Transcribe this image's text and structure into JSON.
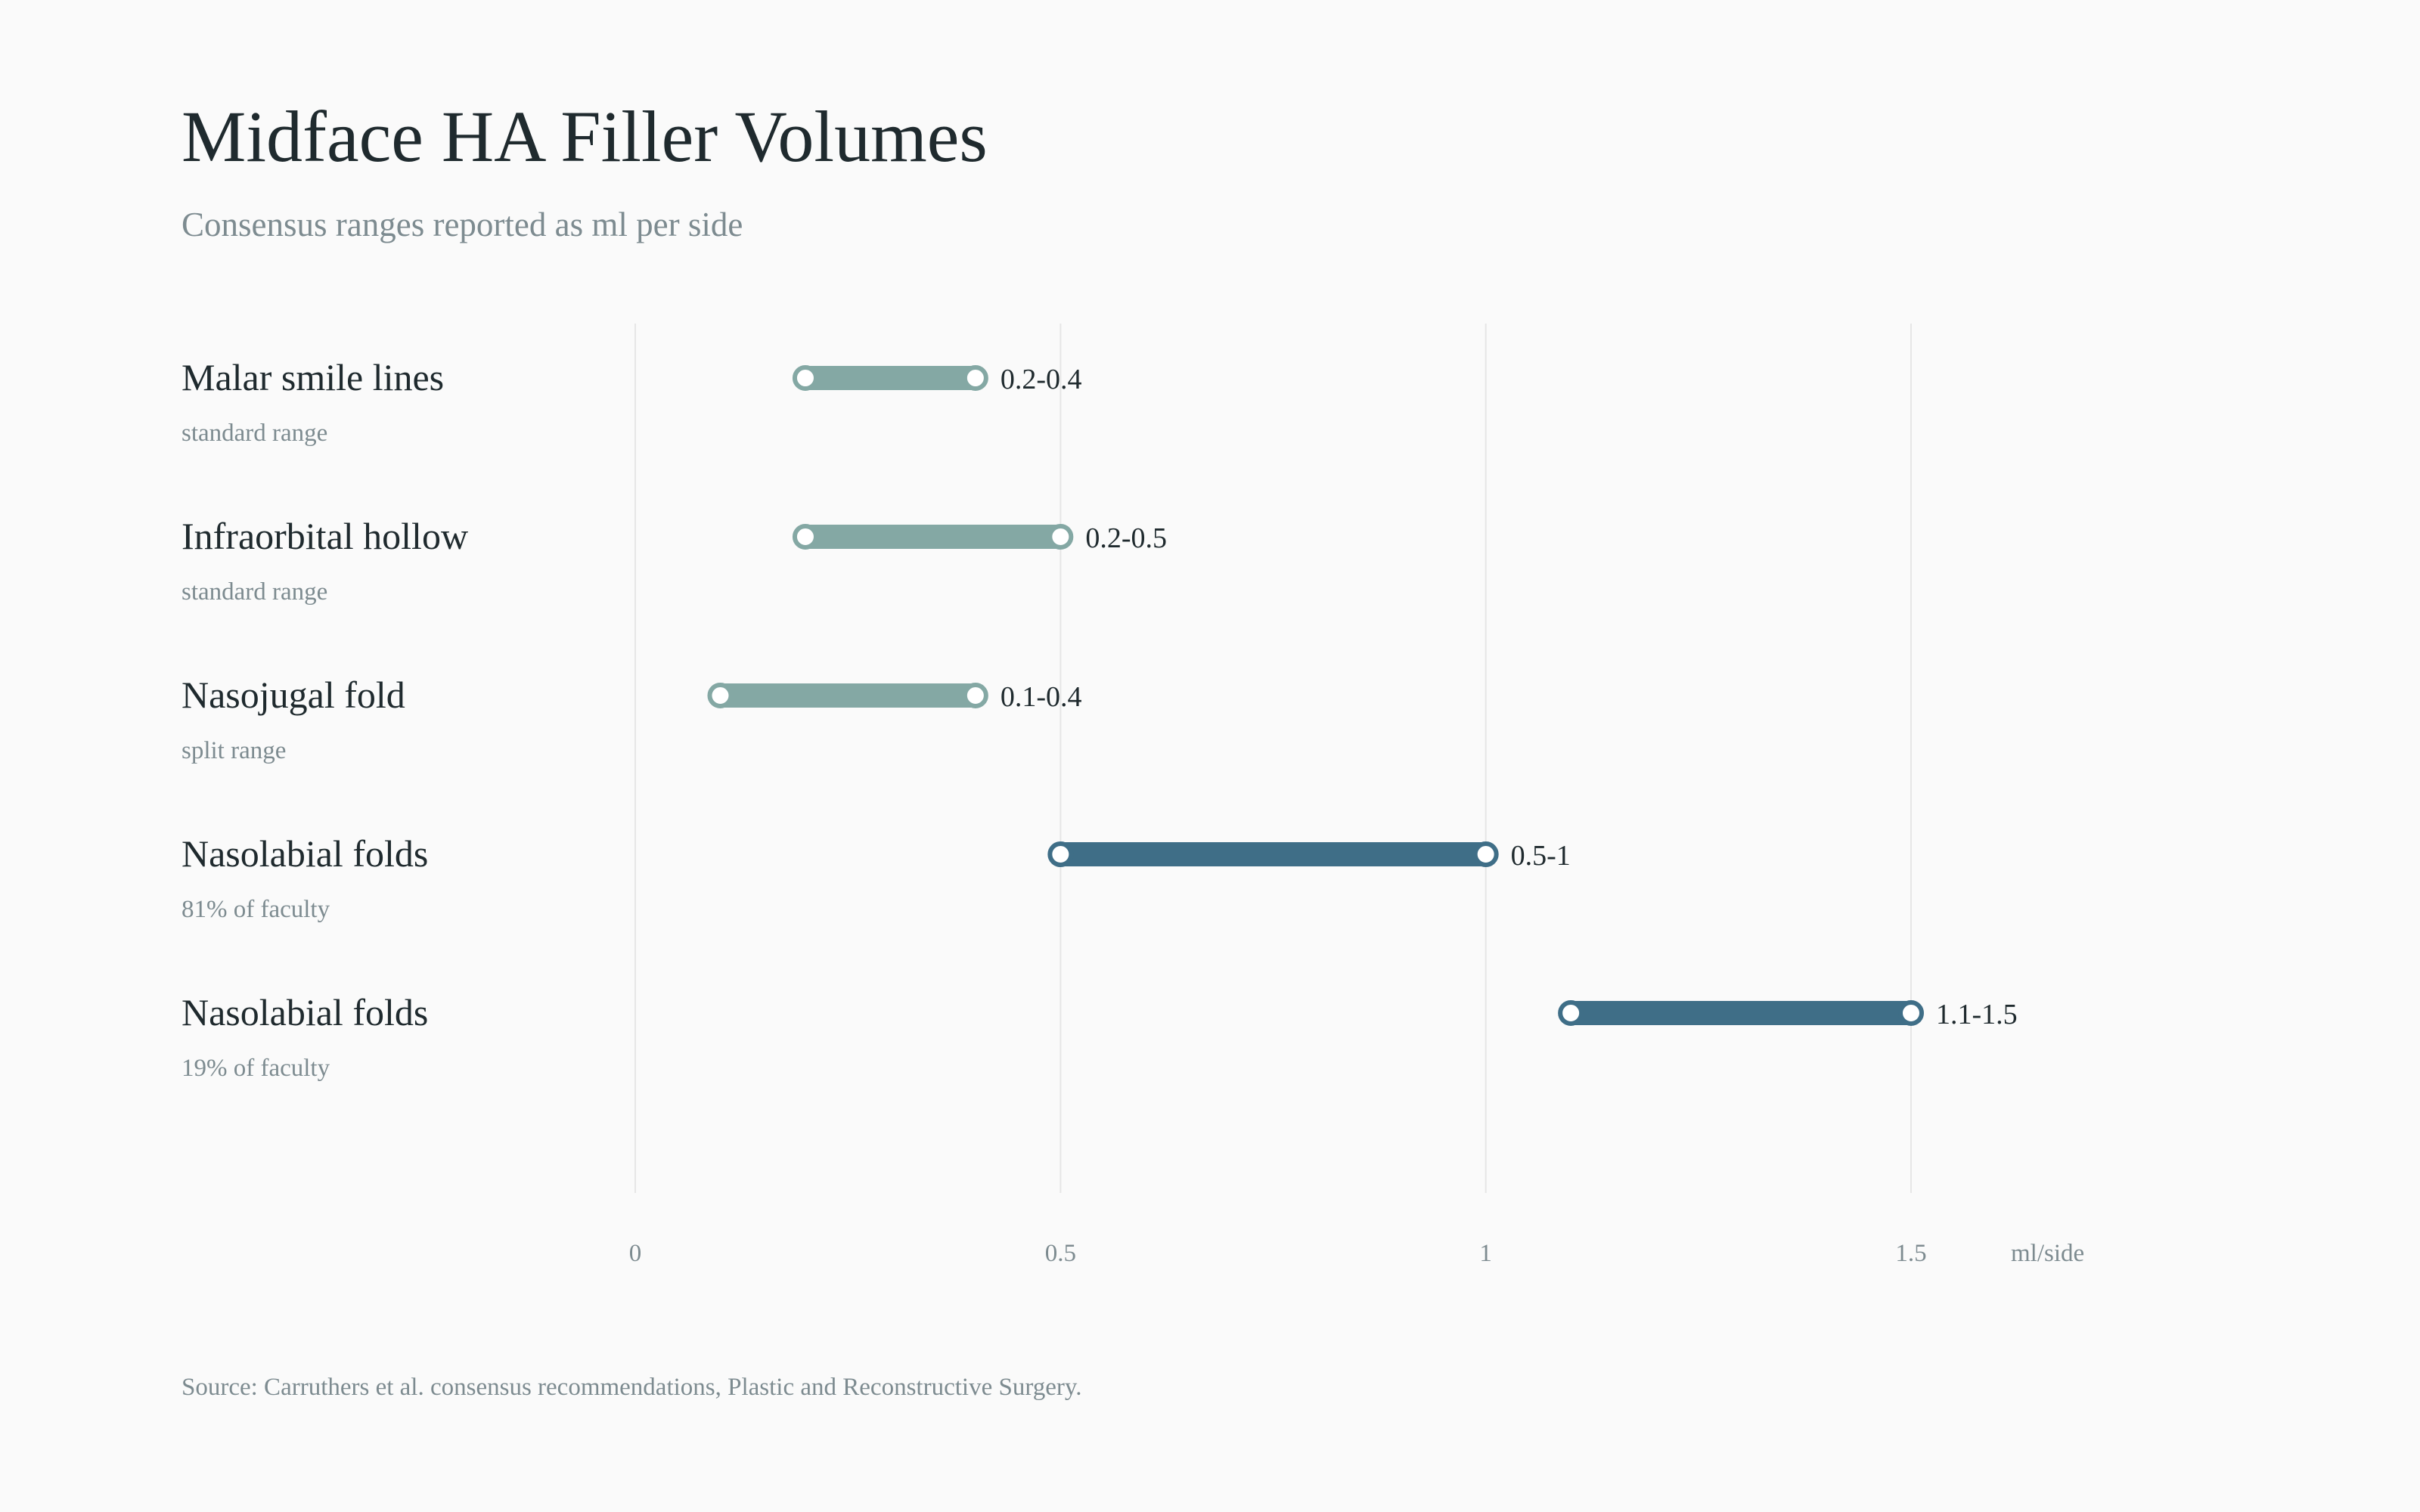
{
  "header": {
    "title": "Midface HA Filler Volumes",
    "subtitle": "Consensus ranges reported as ml per side"
  },
  "footer": {
    "source": "Source: Carruthers et al. consensus recommendations, Plastic and Reconstructive Surgery."
  },
  "colors": {
    "standard": "#84a8a4",
    "nasolabial": "#3f6e87",
    "grid": "#e6e6e6",
    "label": "#1f2a2e",
    "muted": "#7d8b90",
    "marker_fill": "#ffffff"
  },
  "chart_data": {
    "type": "range-bar",
    "xlim": [
      0,
      1.5
    ],
    "x_ticks": [
      0,
      0.5,
      1,
      1.5
    ],
    "x_tick_labels": [
      "0",
      "0.5",
      "1",
      "1.5"
    ],
    "unit_label": "ml/side",
    "grid": true,
    "rows": [
      {
        "label": "Malar smile lines",
        "note": "standard range",
        "low": 0.2,
        "high": 0.4,
        "value_label": "0.2-0.4",
        "group": "standard"
      },
      {
        "label": "Infraorbital hollow",
        "note": "standard range",
        "low": 0.2,
        "high": 0.5,
        "value_label": "0.2-0.5",
        "group": "standard"
      },
      {
        "label": "Nasojugal fold",
        "note": "split range",
        "low": 0.1,
        "high": 0.4,
        "value_label": "0.1-0.4",
        "group": "standard"
      },
      {
        "label": "Nasolabial folds",
        "note": "81% of faculty",
        "low": 0.5,
        "high": 1.0,
        "value_label": "0.5-1",
        "group": "nasolabial"
      },
      {
        "label": "Nasolabial folds",
        "note": "19% of faculty",
        "low": 1.1,
        "high": 1.5,
        "value_label": "1.1-1.5",
        "group": "nasolabial"
      }
    ]
  }
}
